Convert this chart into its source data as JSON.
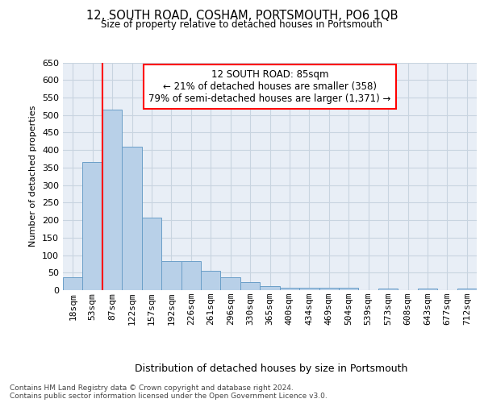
{
  "title": "12, SOUTH ROAD, COSHAM, PORTSMOUTH, PO6 1QB",
  "subtitle": "Size of property relative to detached houses in Portsmouth",
  "xlabel": "Distribution of detached houses by size in Portsmouth",
  "ylabel": "Number of detached properties",
  "categories": [
    "18sqm",
    "53sqm",
    "87sqm",
    "122sqm",
    "157sqm",
    "192sqm",
    "226sqm",
    "261sqm",
    "296sqm",
    "330sqm",
    "365sqm",
    "400sqm",
    "434sqm",
    "469sqm",
    "504sqm",
    "539sqm",
    "573sqm",
    "608sqm",
    "643sqm",
    "677sqm",
    "712sqm"
  ],
  "values": [
    37,
    365,
    515,
    410,
    207,
    83,
    83,
    55,
    37,
    23,
    12,
    8,
    8,
    8,
    8,
    0,
    5,
    0,
    5,
    0,
    5
  ],
  "bar_color": "#b8d0e8",
  "bar_edge_color": "#6a9fc8",
  "grid_color": "#c8d4e0",
  "background_color": "#e8eef6",
  "annotation_text": "12 SOUTH ROAD: 85sqm\n← 21% of detached houses are smaller (358)\n79% of semi-detached houses are larger (1,371) →",
  "footer_line1": "Contains HM Land Registry data © Crown copyright and database right 2024.",
  "footer_line2": "Contains public sector information licensed under the Open Government Licence v3.0.",
  "ylim": [
    0,
    650
  ],
  "yticks": [
    0,
    50,
    100,
    150,
    200,
    250,
    300,
    350,
    400,
    450,
    500,
    550,
    600,
    650
  ],
  "red_line_x": 1.5
}
